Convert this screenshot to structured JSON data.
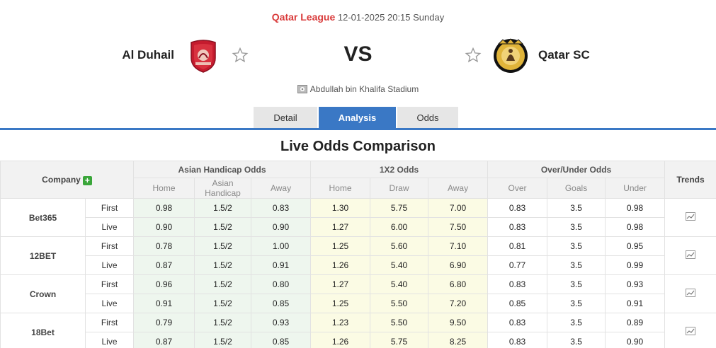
{
  "match": {
    "league": "Qatar League",
    "datetime": "12-01-2025 20:15 Sunday",
    "home": "Al Duhail",
    "away": "Qatar SC",
    "vs": "VS",
    "stadium": "Abdullah bin Khalifa Stadium"
  },
  "tabs": [
    {
      "label": "Detail"
    },
    {
      "label": "Analysis"
    },
    {
      "label": "Odds"
    }
  ],
  "section_title": "Live Odds Comparison",
  "table": {
    "company_label": "Company",
    "plus": "+",
    "trends_label": "Trends",
    "groups": [
      "Asian Handicap Odds",
      "1X2 Odds",
      "Over/Under Odds"
    ],
    "subheaders": [
      "Home",
      "Asian Handicap",
      "Away",
      "Home",
      "Draw",
      "Away",
      "Over",
      "Goals",
      "Under"
    ],
    "companies": [
      {
        "name": "Bet365",
        "rows": [
          {
            "type": "First",
            "v": [
              "0.98",
              "1.5/2",
              "0.83",
              "1.30",
              "5.75",
              "7.00",
              "0.83",
              "3.5",
              "0.98"
            ]
          },
          {
            "type": "Live",
            "v": [
              "0.90",
              "1.5/2",
              "0.90",
              "1.27",
              "6.00",
              "7.50",
              "0.83",
              "3.5",
              "0.98"
            ]
          }
        ]
      },
      {
        "name": "12BET",
        "rows": [
          {
            "type": "First",
            "v": [
              "0.78",
              "1.5/2",
              "1.00",
              "1.25",
              "5.60",
              "7.10",
              "0.81",
              "3.5",
              "0.95"
            ]
          },
          {
            "type": "Live",
            "v": [
              "0.87",
              "1.5/2",
              "0.91",
              "1.26",
              "5.40",
              "6.90",
              "0.77",
              "3.5",
              "0.99"
            ]
          }
        ]
      },
      {
        "name": "Crown",
        "rows": [
          {
            "type": "First",
            "v": [
              "0.96",
              "1.5/2",
              "0.80",
              "1.27",
              "5.40",
              "6.80",
              "0.83",
              "3.5",
              "0.93"
            ]
          },
          {
            "type": "Live",
            "v": [
              "0.91",
              "1.5/2",
              "0.85",
              "1.25",
              "5.50",
              "7.20",
              "0.85",
              "3.5",
              "0.91"
            ]
          }
        ]
      },
      {
        "name": "18Bet",
        "rows": [
          {
            "type": "First",
            "v": [
              "0.79",
              "1.5/2",
              "0.93",
              "1.23",
              "5.50",
              "9.50",
              "0.83",
              "3.5",
              "0.89"
            ]
          },
          {
            "type": "Live",
            "v": [
              "0.87",
              "1.5/2",
              "0.85",
              "1.26",
              "5.75",
              "8.25",
              "0.83",
              "3.5",
              "0.90"
            ]
          }
        ]
      }
    ]
  },
  "colors": {
    "accent": "#3a78c5",
    "league": "#d93a3a",
    "ah_bg": "#eef6ee",
    "x12_bg": "#fbfbe4",
    "plus_green": "#3aa63a"
  },
  "icons": {
    "favorite": "star-outline-icon",
    "stadium": "stadium-icon",
    "trend": "chart-line-icon"
  }
}
